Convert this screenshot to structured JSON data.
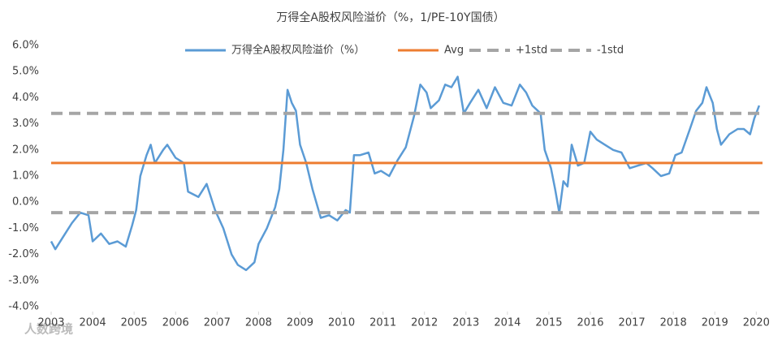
{
  "chart_data": {
    "type": "line",
    "title": "万得全A股权风险溢价（%，1/PE-10Y国债）",
    "watermark": "人数跨境",
    "xlim": [
      2003,
      2020.15
    ],
    "xticks": [
      2003,
      2004,
      2005,
      2006,
      2007,
      2008,
      2009,
      2010,
      2011,
      2012,
      2013,
      2014,
      2015,
      2016,
      2017,
      2018,
      2019,
      2020
    ],
    "ylim": [
      -4,
      6
    ],
    "yticks": [
      {
        "value": -4,
        "label": "-4.0%"
      },
      {
        "value": -3,
        "label": "-3.0%"
      },
      {
        "value": -2,
        "label": "-2.0%"
      },
      {
        "value": -1,
        "label": "-1.0%"
      },
      {
        "value": 0,
        "label": "0.0%"
      },
      {
        "value": 1,
        "label": "1.0%"
      },
      {
        "value": 2,
        "label": "2.0%"
      },
      {
        "value": 3,
        "label": "3.0%"
      },
      {
        "value": 4,
        "label": "4.0%"
      },
      {
        "value": 5,
        "label": "5.0%"
      },
      {
        "value": 6,
        "label": "6.0%"
      }
    ],
    "grid": false,
    "legend": "top",
    "series": [
      {
        "name": "万得全A股权风险溢价（%）",
        "color": "#5b9bd5",
        "style": "solid",
        "x": [
          2003.0,
          2003.1,
          2003.3,
          2003.5,
          2003.7,
          2003.9,
          2004.0,
          2004.2,
          2004.4,
          2004.6,
          2004.8,
          2004.95,
          2005.05,
          2005.15,
          2005.3,
          2005.4,
          2005.5,
          2005.7,
          2005.8,
          2006.0,
          2006.2,
          2006.3,
          2006.55,
          2006.75,
          2006.95,
          2007.15,
          2007.35,
          2007.5,
          2007.7,
          2007.9,
          2008.0,
          2008.2,
          2008.4,
          2008.5,
          2008.6,
          2008.7,
          2008.8,
          2008.9,
          2009.0,
          2009.15,
          2009.3,
          2009.5,
          2009.7,
          2009.9,
          2010.1,
          2010.2,
          2010.3,
          2010.45,
          2010.65,
          2010.8,
          2010.95,
          2011.15,
          2011.35,
          2011.55,
          2011.75,
          2011.9,
          2012.05,
          2012.15,
          2012.35,
          2012.5,
          2012.65,
          2012.8,
          2012.95,
          2013.1,
          2013.3,
          2013.5,
          2013.7,
          2013.9,
          2014.1,
          2014.3,
          2014.45,
          2014.6,
          2014.8,
          2014.9,
          2015.05,
          2015.15,
          2015.25,
          2015.35,
          2015.45,
          2015.55,
          2015.7,
          2015.85,
          2016.0,
          2016.15,
          2016.35,
          2016.55,
          2016.75,
          2016.95,
          2017.15,
          2017.35,
          2017.5,
          2017.7,
          2017.9,
          2018.05,
          2018.2,
          2018.4,
          2018.55,
          2018.7,
          2018.8,
          2018.95,
          2019.05,
          2019.15,
          2019.35,
          2019.55,
          2019.7,
          2019.85,
          2019.95,
          2020.07
        ],
        "values": [
          -1.5,
          -1.8,
          -1.3,
          -0.8,
          -0.4,
          -0.5,
          -1.5,
          -1.2,
          -1.6,
          -1.5,
          -1.7,
          -0.9,
          -0.3,
          1.0,
          1.8,
          2.2,
          1.5,
          2.0,
          2.2,
          1.7,
          1.5,
          0.4,
          0.2,
          0.7,
          -0.3,
          -1.0,
          -2.0,
          -2.4,
          -2.6,
          -2.3,
          -1.6,
          -1.0,
          -0.2,
          0.5,
          2.0,
          4.3,
          3.8,
          3.5,
          2.2,
          1.5,
          0.5,
          -0.6,
          -0.5,
          -0.7,
          -0.3,
          -0.4,
          1.8,
          1.8,
          1.9,
          1.1,
          1.2,
          1.0,
          1.6,
          2.1,
          3.3,
          4.5,
          4.2,
          3.6,
          3.9,
          4.5,
          4.4,
          4.8,
          3.4,
          3.8,
          4.3,
          3.6,
          4.4,
          3.8,
          3.7,
          4.5,
          4.2,
          3.7,
          3.4,
          2.0,
          1.3,
          0.5,
          -0.4,
          0.8,
          0.6,
          2.2,
          1.4,
          1.5,
          2.7,
          2.4,
          2.2,
          2.0,
          1.9,
          1.3,
          1.4,
          1.5,
          1.3,
          1.0,
          1.1,
          1.8,
          1.9,
          2.8,
          3.5,
          3.8,
          4.4,
          3.8,
          2.8,
          2.2,
          2.6,
          2.8,
          2.8,
          2.6,
          3.2,
          3.7
        ]
      },
      {
        "name": "Avg",
        "color": "#ed7d31",
        "style": "solid",
        "x": [
          2003,
          2020.15
        ],
        "values": [
          1.5,
          1.5
        ]
      },
      {
        "name": "+1std",
        "color": "#a5a5a5",
        "style": "dashed",
        "x": [
          2003,
          2020.15
        ],
        "values": [
          3.4,
          3.4
        ]
      },
      {
        "name": "-1std",
        "color": "#a5a5a5",
        "style": "dashed",
        "x": [
          2003,
          2020.15
        ],
        "values": [
          -0.4,
          -0.4
        ]
      }
    ]
  }
}
